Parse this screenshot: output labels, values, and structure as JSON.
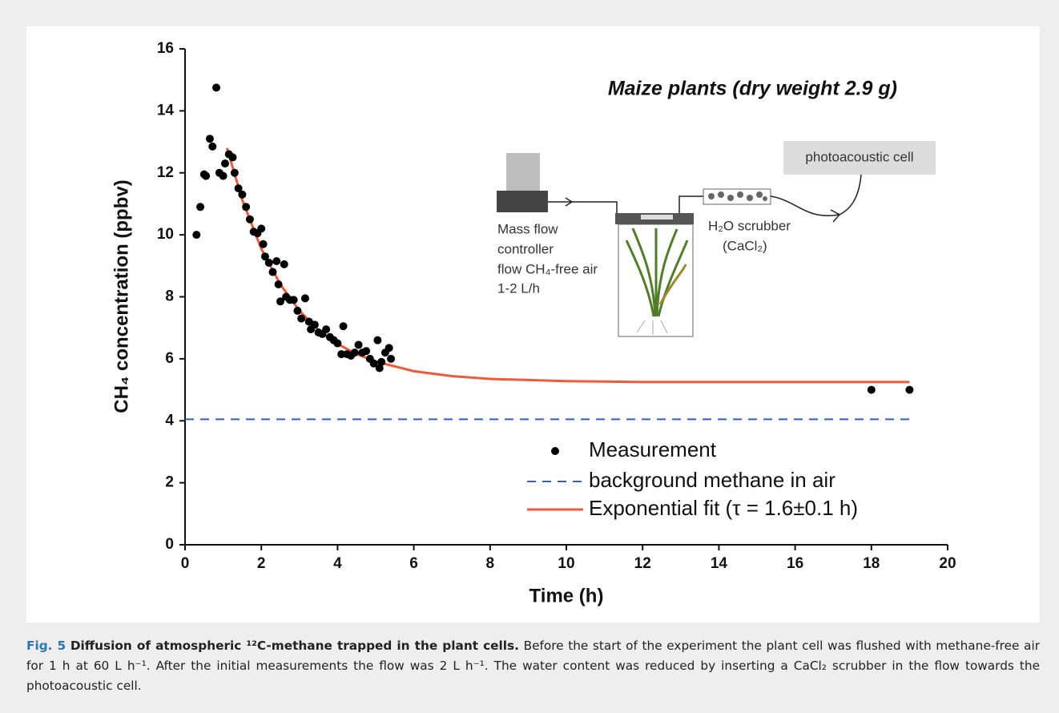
{
  "chart_data": {
    "type": "scatter",
    "annotation": "Maize plants (dry weight 2.9 g)",
    "xlabel": "Time (h)",
    "ylabel": "CH₄ concentration (ppbv)",
    "xlim": [
      0,
      20
    ],
    "ylim": [
      0,
      16
    ],
    "xticks": [
      0,
      2,
      4,
      6,
      8,
      10,
      12,
      14,
      16,
      18,
      20
    ],
    "yticks": [
      0,
      2,
      4,
      6,
      8,
      10,
      12,
      14,
      16
    ],
    "series": [
      {
        "name": "Measurement",
        "style": "points",
        "color": "#000000",
        "x": [
          0.3,
          0.4,
          0.5,
          0.55,
          0.65,
          0.72,
          0.82,
          0.9,
          1.0,
          1.05,
          1.15,
          1.25,
          1.3,
          1.4,
          1.5,
          1.6,
          1.7,
          1.8,
          1.9,
          2.0,
          2.05,
          2.1,
          2.2,
          2.3,
          2.4,
          2.45,
          2.5,
          2.6,
          2.65,
          2.75,
          2.85,
          2.95,
          3.05,
          3.15,
          3.25,
          3.3,
          3.4,
          3.5,
          3.6,
          3.7,
          3.8,
          3.9,
          4.0,
          4.1,
          4.15,
          4.25,
          4.35,
          4.45,
          4.55,
          4.65,
          4.75,
          4.85,
          4.95,
          5.05,
          5.1,
          5.15,
          5.25,
          5.35,
          5.4,
          18,
          19
        ],
        "values": [
          10.0,
          10.9,
          11.95,
          11.9,
          13.1,
          12.85,
          14.75,
          12.0,
          11.9,
          12.3,
          12.6,
          12.5,
          12.0,
          11.5,
          11.3,
          10.9,
          10.5,
          10.1,
          10.05,
          10.2,
          9.7,
          9.3,
          9.1,
          8.8,
          9.15,
          8.4,
          7.85,
          9.05,
          8.0,
          7.9,
          7.9,
          7.55,
          7.3,
          7.95,
          7.2,
          6.95,
          7.1,
          6.85,
          6.8,
          6.95,
          6.7,
          6.6,
          6.5,
          6.15,
          7.05,
          6.15,
          6.1,
          6.2,
          6.45,
          6.2,
          6.25,
          6.0,
          5.85,
          6.6,
          5.7,
          5.9,
          6.2,
          6.35,
          6.0,
          5.0,
          5.0
        ]
      },
      {
        "name": "background methane in air",
        "style": "dashed",
        "color": "#2e5fc7",
        "x": [
          0,
          19
        ],
        "values": [
          4.05,
          4.05
        ]
      },
      {
        "name": "Exponential fit (τ = 1.6±0.1 h)",
        "style": "solid",
        "color": "#f05a3c",
        "x": [
          1.1,
          1.5,
          2,
          2.5,
          3,
          3.5,
          4,
          4.5,
          5,
          6,
          7,
          8,
          10,
          12,
          14,
          16,
          19
        ],
        "values": [
          12.8,
          11.13,
          9.55,
          8.4,
          7.55,
          6.93,
          6.48,
          6.15,
          5.91,
          5.6,
          5.44,
          5.35,
          5.28,
          5.25,
          5.25,
          5.25,
          5.25
        ]
      }
    ]
  },
  "diagram": {
    "mfc_lines": [
      "Mass flow",
      "controller",
      "flow CH₄-free air",
      "1-2 L/h"
    ],
    "scrubber_lines": [
      "H₂O scrubber",
      "(CaCl₂)"
    ],
    "cell": "photoacoustic cell"
  },
  "caption": {
    "figure": "Fig. 5",
    "title": "Diffusion of atmospheric ¹²C-methane trapped in the plant cells.",
    "body": "Before the start of the experiment the plant cell was flushed with methane-free air for 1 h at 60 L h⁻¹. After the initial measurements the flow was 2 L h⁻¹. The water content was reduced by inserting a CaCl₂ scrubber in the flow towards the photoacoustic cell."
  }
}
